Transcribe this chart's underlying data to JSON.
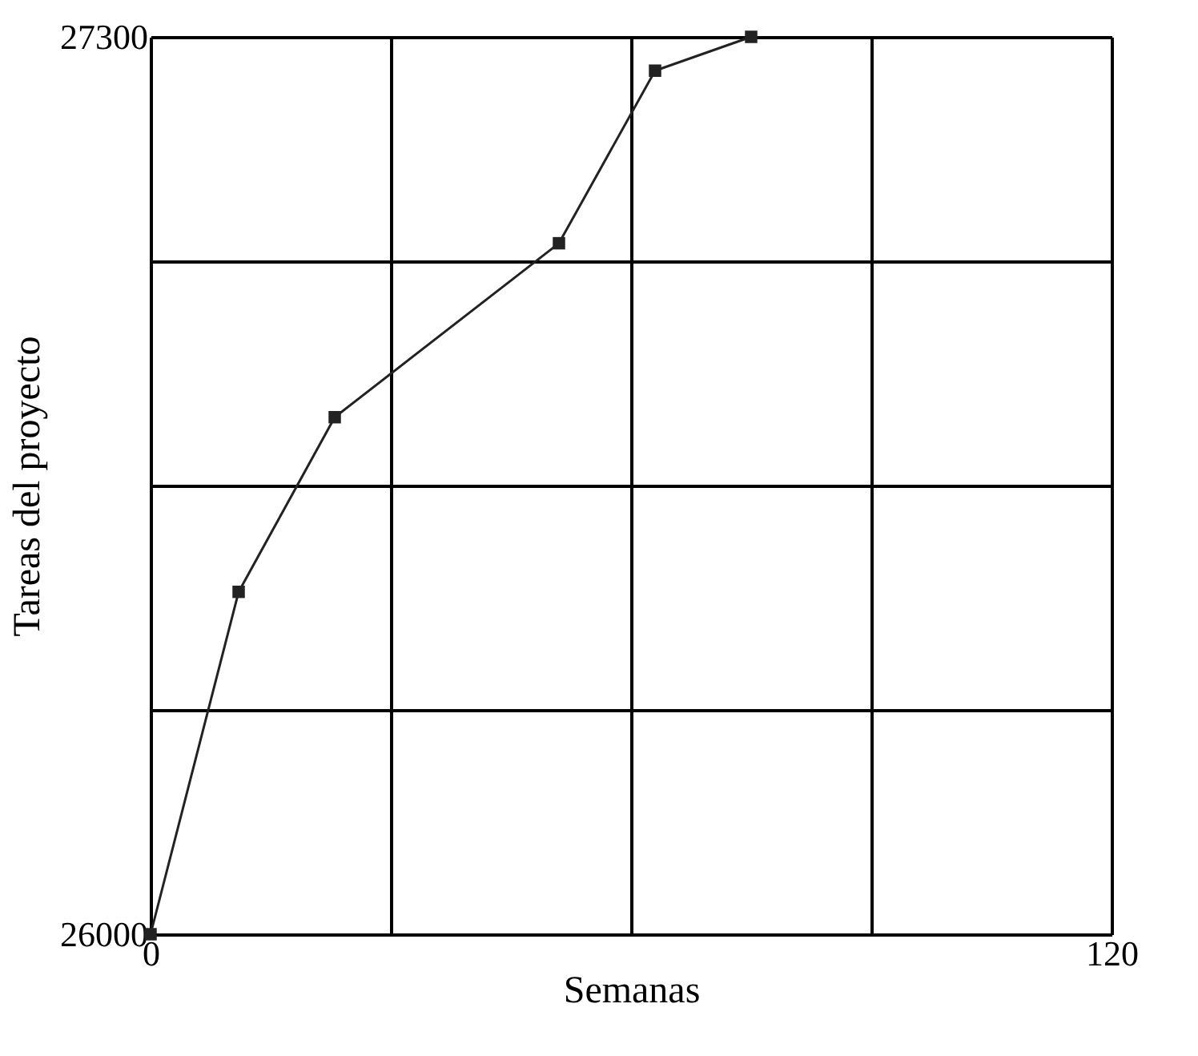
{
  "chart_data": {
    "type": "line",
    "xlabel": "Semanas",
    "ylabel": "Tareas del proyecto",
    "x": [
      0,
      11,
      23,
      51,
      63,
      75
    ],
    "series": [
      {
        "color": "#222222",
        "values": [
          26000,
          26496,
          26749,
          27001,
          27251,
          27300
        ]
      }
    ],
    "xlim": [
      0,
      120
    ],
    "xticks": [
      0,
      {
        "value": 30,
        "label": null
      },
      {
        "value": 60,
        "label": null
      },
      {
        "value": 90,
        "label": null
      },
      120
    ],
    "ylim": [
      26000,
      27300
    ],
    "yticks": [
      26000,
      {
        "value": 26325,
        "label": null
      },
      {
        "value": 26650,
        "label": null
      },
      {
        "value": 26975,
        "label": null
      },
      27300
    ],
    "grid": true,
    "marker": "square",
    "line_style": "solid"
  }
}
